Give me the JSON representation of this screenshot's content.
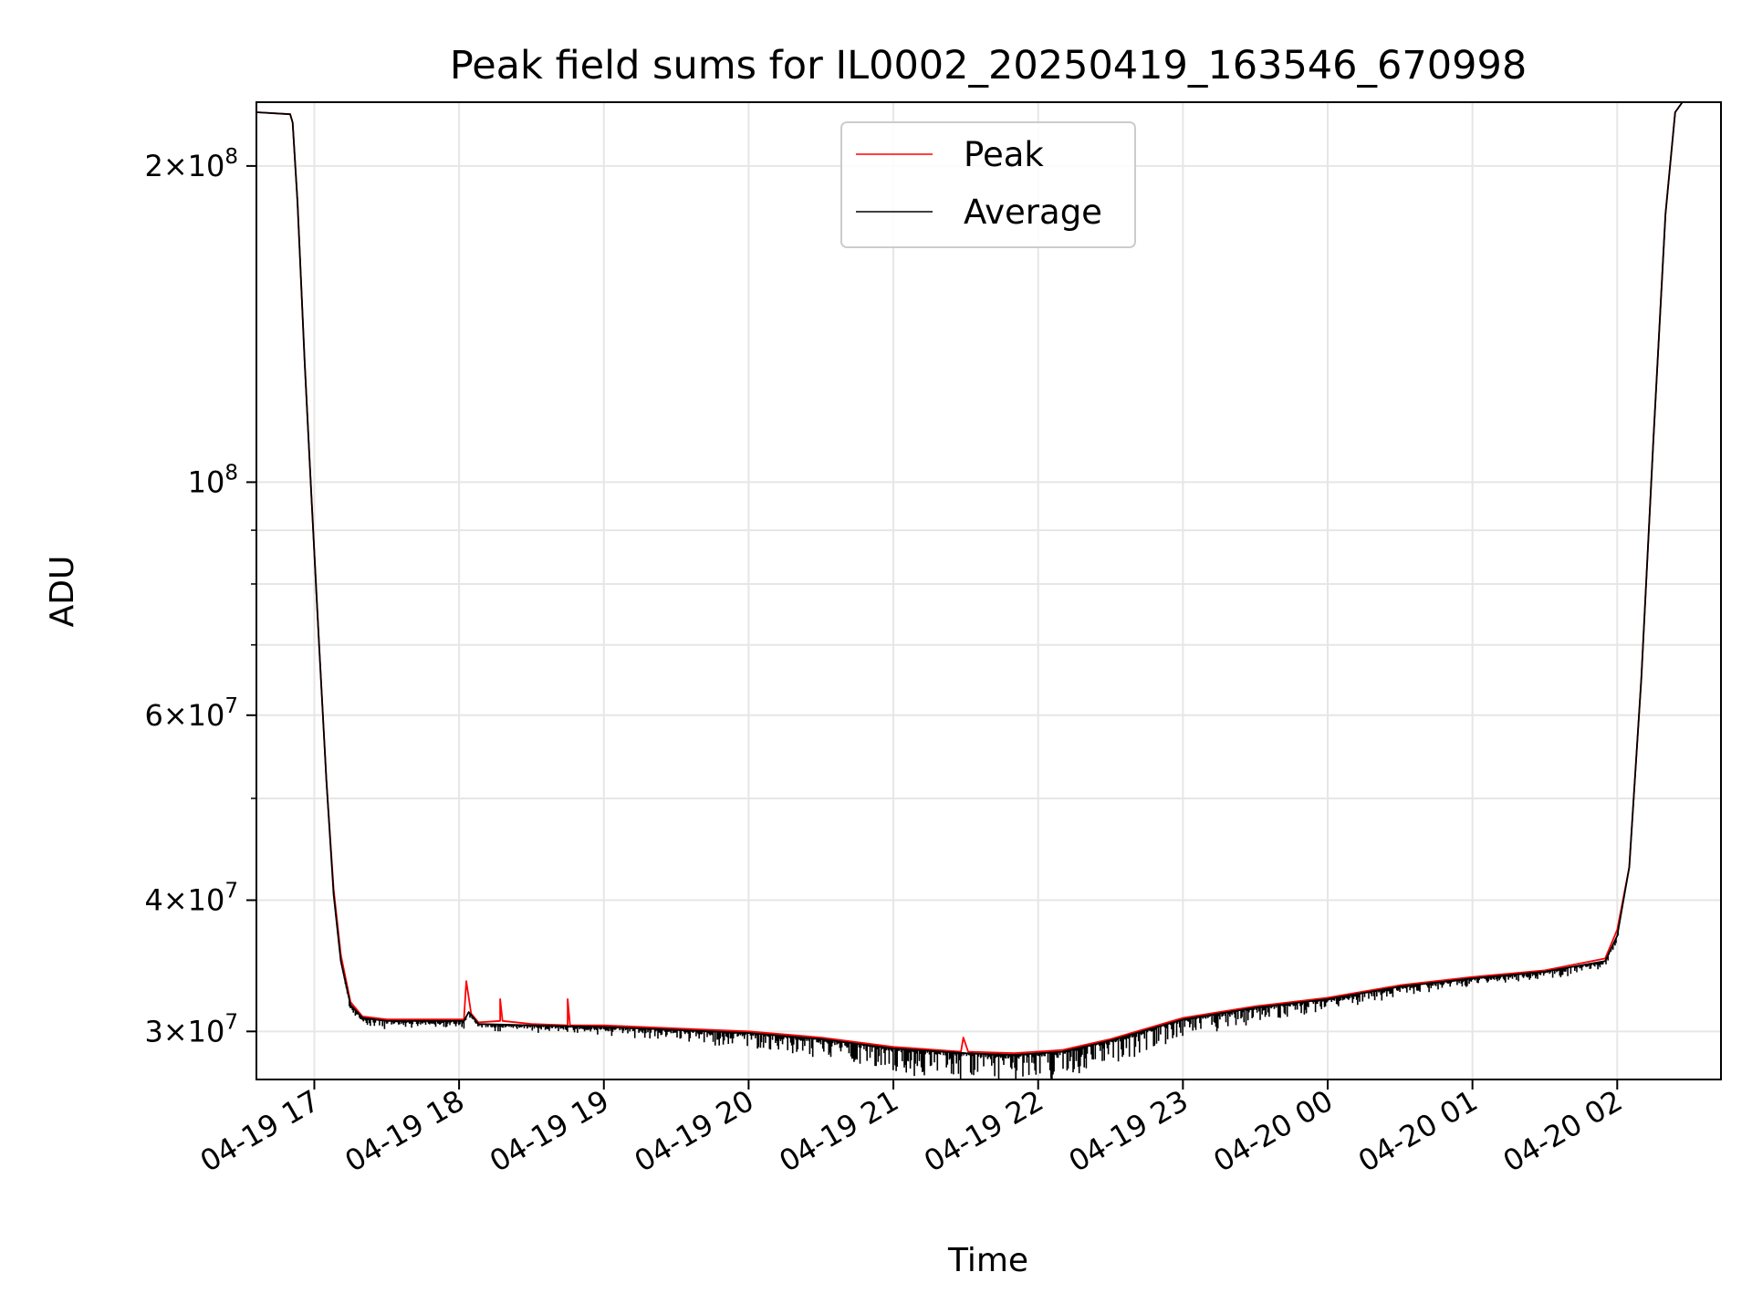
{
  "chart_data": {
    "type": "line",
    "title": "Peak field sums for IL0002_20250419_163546_670998",
    "xlabel": "Time",
    "ylabel": "ADU",
    "yscale": "log",
    "grid": true,
    "legend_position": "top-center",
    "xlim": [
      "2025-04-19 16:36",
      "2025-04-20 02:43"
    ],
    "ylim": [
      27000000,
      230000000
    ],
    "x_ticks": [
      {
        "value": "2025-04-19 17:00",
        "label": "04-19 17"
      },
      {
        "value": "2025-04-19 18:00",
        "label": "04-19 18"
      },
      {
        "value": "2025-04-19 19:00",
        "label": "04-19 19"
      },
      {
        "value": "2025-04-19 20:00",
        "label": "04-19 20"
      },
      {
        "value": "2025-04-19 21:00",
        "label": "04-19 21"
      },
      {
        "value": "2025-04-19 22:00",
        "label": "04-19 22"
      },
      {
        "value": "2025-04-19 23:00",
        "label": "04-19 23"
      },
      {
        "value": "2025-04-20 00:00",
        "label": "04-20 00"
      },
      {
        "value": "2025-04-20 01:00",
        "label": "04-20 01"
      },
      {
        "value": "2025-04-20 02:00",
        "label": "04-20 02"
      }
    ],
    "y_major_ticks": [
      {
        "value": 30000000,
        "coef": "3",
        "exp": "7"
      },
      {
        "value": 40000000,
        "coef": "4",
        "exp": "7"
      },
      {
        "value": 60000000,
        "coef": "6",
        "exp": "7"
      },
      {
        "value": 100000000,
        "coef": "",
        "exp": "8"
      },
      {
        "value": 200000000,
        "coef": "2",
        "exp": "8"
      }
    ],
    "y_minor_ticks": [
      50000000,
      70000000,
      80000000,
      90000000
    ],
    "series": [
      {
        "name": "Peak",
        "color": "#ff0000",
        "points": [
          [
            "2025-04-19 16:36",
            225000000
          ],
          [
            "2025-04-19 16:50",
            224000000
          ],
          [
            "2025-04-19 16:51",
            220000000
          ],
          [
            "2025-04-19 16:53",
            185000000
          ],
          [
            "2025-04-19 16:56",
            130000000
          ],
          [
            "2025-04-19 16:59",
            95000000
          ],
          [
            "2025-04-19 17:02",
            70000000
          ],
          [
            "2025-04-19 17:05",
            52000000
          ],
          [
            "2025-04-19 17:08",
            41000000
          ],
          [
            "2025-04-19 17:11",
            35500000
          ],
          [
            "2025-04-19 17:15",
            32000000
          ],
          [
            "2025-04-19 17:20",
            31000000
          ],
          [
            "2025-04-19 17:30",
            30800000
          ],
          [
            "2025-04-19 17:45",
            30800000
          ],
          [
            "2025-04-19 18:02",
            30800000
          ],
          [
            "2025-04-19 18:03",
            33500000
          ],
          [
            "2025-04-19 18:05",
            31200000
          ],
          [
            "2025-04-19 18:08",
            30600000
          ],
          [
            "2025-04-19 18:17",
            30700000
          ],
          [
            "2025-04-19 18:17",
            32200000
          ],
          [
            "2025-04-19 18:18",
            30700000
          ],
          [
            "2025-04-19 18:30",
            30500000
          ],
          [
            "2025-04-19 18:45",
            30400000
          ],
          [
            "2025-04-19 18:45",
            32200000
          ],
          [
            "2025-04-19 18:46",
            30400000
          ],
          [
            "2025-04-19 19:00",
            30400000
          ],
          [
            "2025-04-19 19:30",
            30200000
          ],
          [
            "2025-04-19 20:00",
            30000000
          ],
          [
            "2025-04-19 20:30",
            29600000
          ],
          [
            "2025-04-19 21:00",
            29000000
          ],
          [
            "2025-04-19 21:28",
            28700000
          ],
          [
            "2025-04-19 21:29",
            29600000
          ],
          [
            "2025-04-19 21:31",
            28700000
          ],
          [
            "2025-04-19 21:50",
            28600000
          ],
          [
            "2025-04-19 22:10",
            28800000
          ],
          [
            "2025-04-19 22:30",
            29500000
          ],
          [
            "2025-04-19 23:00",
            30900000
          ],
          [
            "2025-04-19 23:30",
            31700000
          ],
          [
            "2025-04-20 00:00",
            32300000
          ],
          [
            "2025-04-20 00:30",
            33200000
          ],
          [
            "2025-04-20 01:00",
            33800000
          ],
          [
            "2025-04-20 01:30",
            34300000
          ],
          [
            "2025-04-20 01:55",
            35200000
          ],
          [
            "2025-04-20 02:00",
            37500000
          ],
          [
            "2025-04-20 02:05",
            43000000
          ],
          [
            "2025-04-20 02:10",
            65000000
          ],
          [
            "2025-04-20 02:15",
            110000000
          ],
          [
            "2025-04-20 02:20",
            180000000
          ],
          [
            "2025-04-20 02:24",
            225000000
          ],
          [
            "2025-04-20 02:27",
            230000000
          ]
        ]
      },
      {
        "name": "Average",
        "color": "#000000",
        "points": [
          [
            "2025-04-19 16:36",
            225000000
          ],
          [
            "2025-04-19 16:50",
            224000000
          ],
          [
            "2025-04-19 16:51",
            220000000
          ],
          [
            "2025-04-19 16:53",
            185000000
          ],
          [
            "2025-04-19 16:56",
            130000000
          ],
          [
            "2025-04-19 16:59",
            95000000
          ],
          [
            "2025-04-19 17:02",
            70000000
          ],
          [
            "2025-04-19 17:05",
            52000000
          ],
          [
            "2025-04-19 17:08",
            40500000
          ],
          [
            "2025-04-19 17:11",
            35000000
          ],
          [
            "2025-04-19 17:15",
            31800000
          ],
          [
            "2025-04-19 17:20",
            30900000
          ],
          [
            "2025-04-19 17:30",
            30700000
          ],
          [
            "2025-04-19 17:45",
            30700000
          ],
          [
            "2025-04-19 18:02",
            30700000
          ],
          [
            "2025-04-19 18:04",
            31300000
          ],
          [
            "2025-04-19 18:08",
            30500000
          ],
          [
            "2025-04-19 18:30",
            30400000
          ],
          [
            "2025-04-19 19:00",
            30300000
          ],
          [
            "2025-04-19 19:30",
            30100000
          ],
          [
            "2025-04-19 20:00",
            29900000
          ],
          [
            "2025-04-19 20:30",
            29500000
          ],
          [
            "2025-04-19 21:00",
            28900000
          ],
          [
            "2025-04-19 21:30",
            28600000
          ],
          [
            "2025-04-19 21:50",
            28500000
          ],
          [
            "2025-04-19 22:10",
            28700000
          ],
          [
            "2025-04-19 22:30",
            29400000
          ],
          [
            "2025-04-19 23:00",
            30800000
          ],
          [
            "2025-04-19 23:30",
            31600000
          ],
          [
            "2025-04-20 00:00",
            32200000
          ],
          [
            "2025-04-20 00:30",
            33100000
          ],
          [
            "2025-04-20 01:00",
            33700000
          ],
          [
            "2025-04-20 01:30",
            34200000
          ],
          [
            "2025-04-20 01:55",
            35000000
          ],
          [
            "2025-04-20 02:00",
            37000000
          ],
          [
            "2025-04-20 02:05",
            43000000
          ],
          [
            "2025-04-20 02:10",
            65000000
          ],
          [
            "2025-04-20 02:15",
            110000000
          ],
          [
            "2025-04-20 02:20",
            180000000
          ],
          [
            "2025-04-20 02:24",
            225000000
          ],
          [
            "2025-04-20 02:27",
            230000000
          ]
        ]
      }
    ]
  }
}
